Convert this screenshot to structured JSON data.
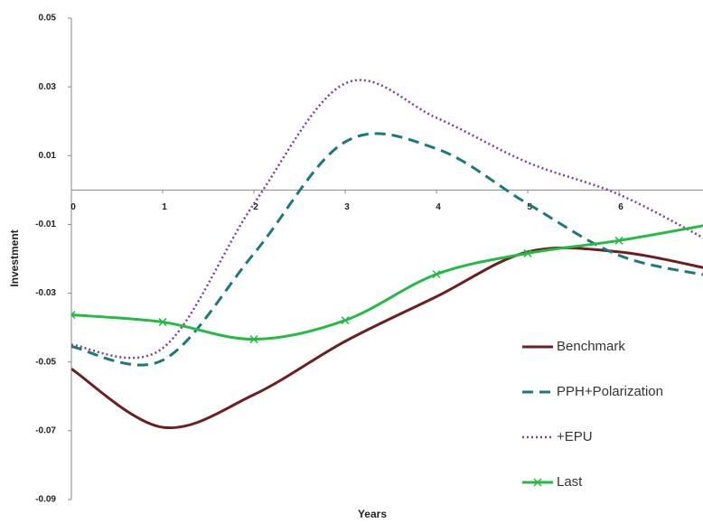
{
  "chart_data": {
    "type": "line",
    "y_label": "Investment",
    "x_label": "Years",
    "x": [
      0,
      1,
      2,
      3,
      4,
      5,
      6,
      7
    ],
    "xlim": [
      0,
      6.92
    ],
    "xticks": [
      0,
      1,
      2,
      3,
      4,
      5,
      6
    ],
    "ylim": [
      -0.09,
      0.05
    ],
    "yticks": [
      0.05,
      0.03,
      0.01,
      -0.01,
      -0.03,
      -0.05,
      -0.07,
      -0.09
    ],
    "grid": false,
    "legend": "lower right",
    "series": [
      {
        "name": "Benchmark",
        "color": "#6b1f1f",
        "dash": "solid",
        "marker": "none",
        "values": [
          -0.052,
          -0.069,
          -0.0595,
          -0.044,
          -0.031,
          -0.018,
          -0.018,
          -0.023
        ]
      },
      {
        "name": "PPH+Polarization",
        "color": "#1a7a7a",
        "dash": "dashed",
        "marker": "none",
        "values": [
          -0.0455,
          -0.0495,
          -0.0185,
          0.014,
          0.012,
          -0.004,
          -0.019,
          -0.025
        ]
      },
      {
        "name": "+EPU",
        "color": "#7b3fa0",
        "dash": "dotted",
        "marker": "none",
        "values": [
          -0.045,
          -0.046,
          -0.004,
          0.031,
          0.021,
          0.008,
          -0.0013,
          -0.015
        ]
      },
      {
        "name": "Last",
        "color": "#22bb44",
        "dash": "solid",
        "marker": "x",
        "values": [
          -0.0363,
          -0.0384,
          -0.0434,
          -0.0379,
          -0.0245,
          -0.0184,
          -0.0147,
          -0.01
        ]
      }
    ]
  }
}
